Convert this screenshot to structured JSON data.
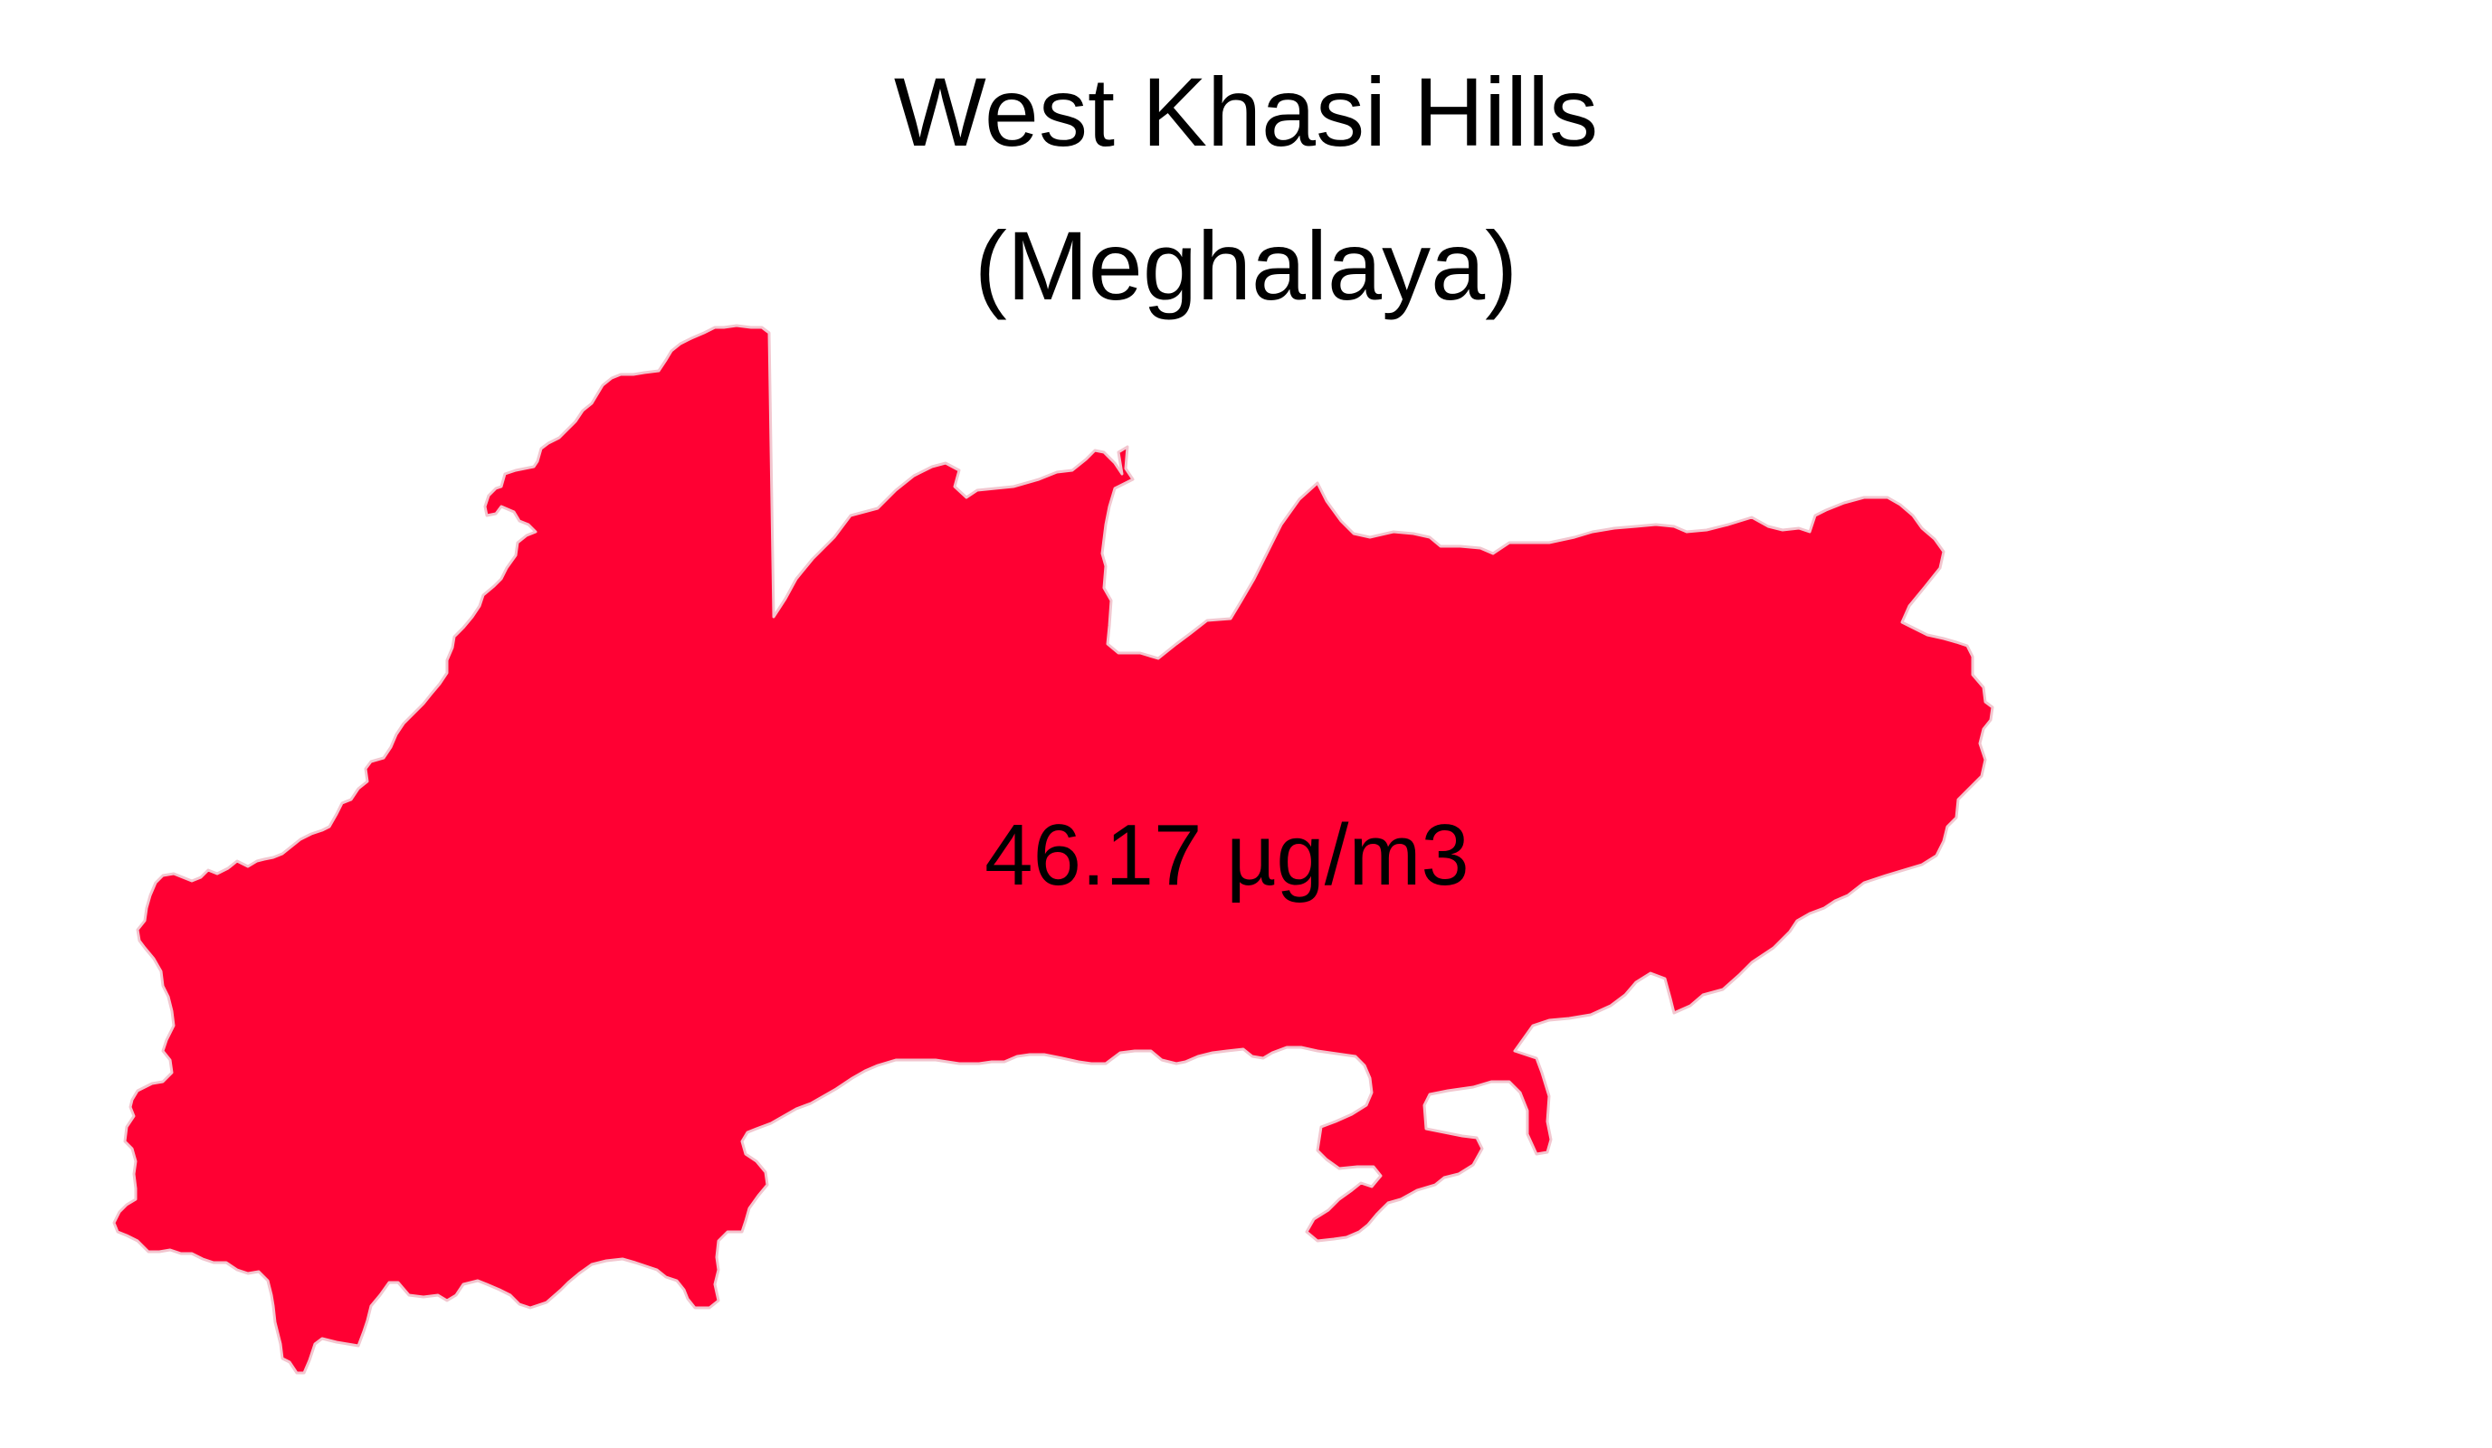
{
  "map": {
    "title_line1": "West Khasi Hills",
    "title_line2": "(Meghalaya)",
    "region_name": "West Khasi Hills",
    "state_name": "Meghalaya",
    "value_label": "46.17 µg/m3",
    "value": 46.17,
    "unit": "µg/m3",
    "fill_color": "#FF0033",
    "border_color": "#F2C6CF",
    "background_color": "#FFFFFF",
    "text_color": "#000000"
  }
}
